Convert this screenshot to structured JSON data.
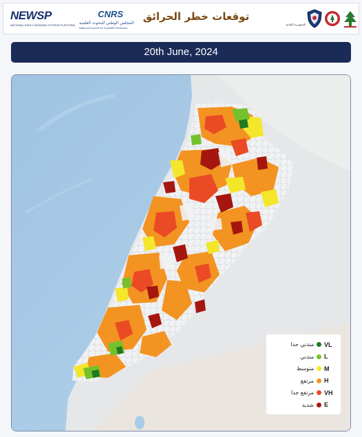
{
  "header": {
    "newsp_logo": "NEWSP",
    "newsp_subtitle": "NATIONAL EARLY WARNING SYSTEM PLATFORM",
    "cnrs_logo": "CNRS",
    "cnrs_arabic": "المجلس الوطني للبحوث العلمية",
    "cnrs_english": "National Council for Scientific Research",
    "title": "توقعات خطر الحرائق",
    "ministry_text": "الجمهورية اللبنانية"
  },
  "date_banner": "20th June, 2024",
  "map": {
    "legend": [
      {
        "code": "VL",
        "label": "متدني جدا",
        "color": "#1f7a1f"
      },
      {
        "code": "L",
        "label": "متدني",
        "color": "#74c12e"
      },
      {
        "code": "M",
        "label": "متوسط",
        "color": "#f3e62b"
      },
      {
        "code": "H",
        "label": "مرتفع",
        "color": "#f39322"
      },
      {
        "code": "VH",
        "label": "مرتفع جدا",
        "color": "#ea4b25"
      },
      {
        "code": "E",
        "label": "شديد",
        "color": "#a5160f"
      }
    ],
    "colors": {
      "sea": "#a9cbe6",
      "land": "#e6e7e9",
      "banner": "#1b2b57",
      "title": "#7a4a15"
    }
  }
}
